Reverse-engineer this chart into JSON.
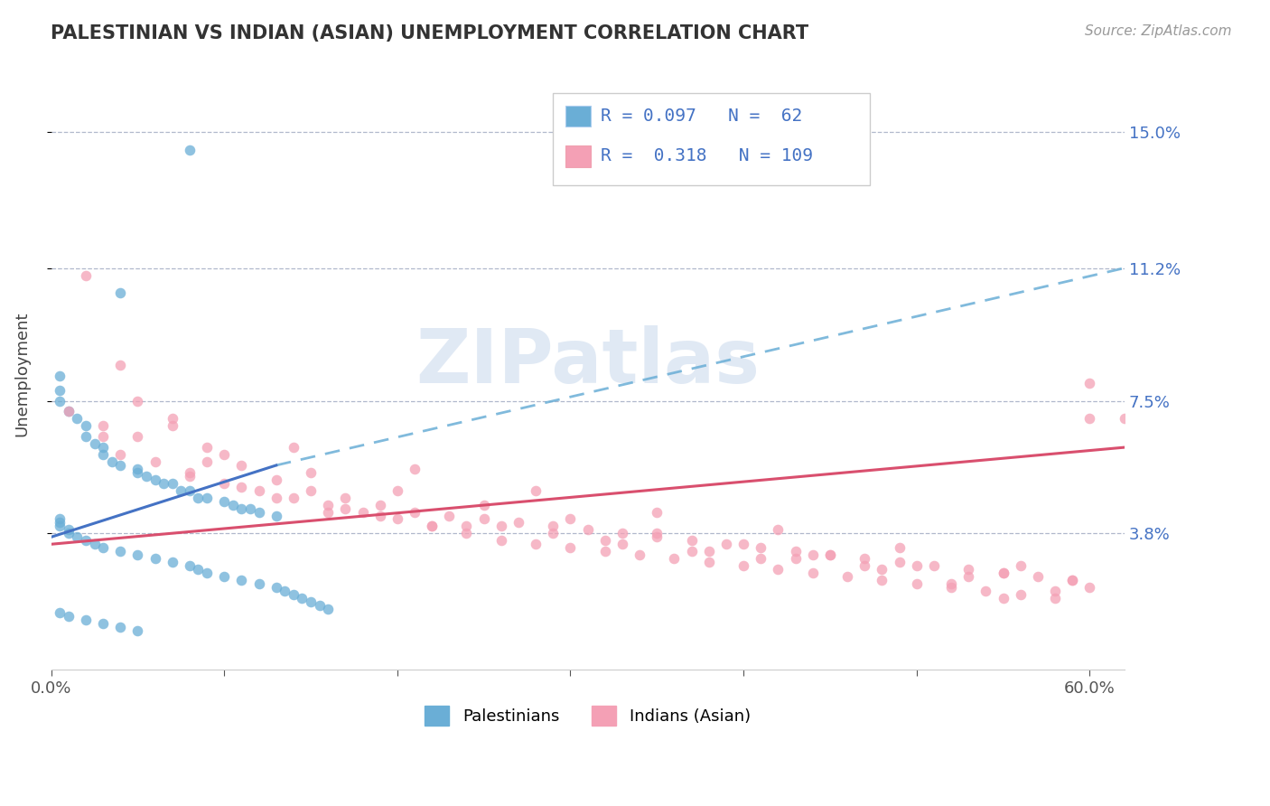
{
  "title": "PALESTINIAN VS INDIAN (ASIAN) UNEMPLOYMENT CORRELATION CHART",
  "source": "Source: ZipAtlas.com",
  "ylabel": "Unemployment",
  "xlim": [
    0.0,
    0.62
  ],
  "ylim": [
    0.0,
    0.165
  ],
  "yticks": [
    0.038,
    0.075,
    0.112,
    0.15
  ],
  "ytick_labels": [
    "3.8%",
    "7.5%",
    "11.2%",
    "15.0%"
  ],
  "blue_color": "#6aaed6",
  "pink_color": "#f4a0b5",
  "trendline_blue_solid_color": "#4472c4",
  "trendline_blue_dash_color": "#6aaed6",
  "trendline_pink_color": "#d94f6e",
  "legend_R1": "0.097",
  "legend_N1": "62",
  "legend_R2": "0.318",
  "legend_N2": "109",
  "label1": "Palestinians",
  "label2": "Indians (Asian)",
  "watermark": "ZIPatlas",
  "blue_scatter_x": [
    0.08,
    0.04,
    0.005,
    0.005,
    0.005,
    0.01,
    0.015,
    0.02,
    0.02,
    0.025,
    0.03,
    0.03,
    0.035,
    0.04,
    0.05,
    0.05,
    0.055,
    0.06,
    0.065,
    0.07,
    0.075,
    0.08,
    0.085,
    0.09,
    0.1,
    0.105,
    0.11,
    0.115,
    0.12,
    0.13,
    0.005,
    0.005,
    0.005,
    0.01,
    0.01,
    0.015,
    0.02,
    0.025,
    0.03,
    0.04,
    0.05,
    0.06,
    0.07,
    0.08,
    0.085,
    0.09,
    0.1,
    0.11,
    0.12,
    0.13,
    0.135,
    0.14,
    0.145,
    0.15,
    0.155,
    0.16,
    0.005,
    0.01,
    0.02,
    0.03,
    0.04,
    0.05
  ],
  "blue_scatter_y": [
    0.145,
    0.105,
    0.082,
    0.078,
    0.075,
    0.072,
    0.07,
    0.068,
    0.065,
    0.063,
    0.062,
    0.06,
    0.058,
    0.057,
    0.056,
    0.055,
    0.054,
    0.053,
    0.052,
    0.052,
    0.05,
    0.05,
    0.048,
    0.048,
    0.047,
    0.046,
    0.045,
    0.045,
    0.044,
    0.043,
    0.042,
    0.041,
    0.04,
    0.039,
    0.038,
    0.037,
    0.036,
    0.035,
    0.034,
    0.033,
    0.032,
    0.031,
    0.03,
    0.029,
    0.028,
    0.027,
    0.026,
    0.025,
    0.024,
    0.023,
    0.022,
    0.021,
    0.02,
    0.019,
    0.018,
    0.017,
    0.016,
    0.015,
    0.014,
    0.013,
    0.012,
    0.011
  ],
  "pink_scatter_x": [
    0.02,
    0.04,
    0.05,
    0.07,
    0.09,
    0.11,
    0.13,
    0.15,
    0.17,
    0.19,
    0.21,
    0.23,
    0.25,
    0.27,
    0.29,
    0.31,
    0.33,
    0.35,
    0.37,
    0.39,
    0.41,
    0.43,
    0.45,
    0.47,
    0.49,
    0.51,
    0.53,
    0.55,
    0.57,
    0.59,
    0.01,
    0.03,
    0.06,
    0.08,
    0.1,
    0.12,
    0.14,
    0.16,
    0.18,
    0.2,
    0.22,
    0.24,
    0.26,
    0.28,
    0.3,
    0.32,
    0.34,
    0.36,
    0.38,
    0.4,
    0.42,
    0.44,
    0.46,
    0.48,
    0.5,
    0.52,
    0.54,
    0.56,
    0.58,
    0.6,
    0.05,
    0.1,
    0.15,
    0.2,
    0.25,
    0.3,
    0.35,
    0.4,
    0.45,
    0.5,
    0.55,
    0.6,
    0.07,
    0.14,
    0.21,
    0.28,
    0.35,
    0.42,
    0.49,
    0.56,
    0.03,
    0.09,
    0.24,
    0.38,
    0.47,
    0.55,
    0.17,
    0.32,
    0.43,
    0.58,
    0.11,
    0.26,
    0.44,
    0.59,
    0.08,
    0.19,
    0.33,
    0.48,
    0.62,
    0.04,
    0.13,
    0.29,
    0.52,
    0.16,
    0.41,
    0.6,
    0.22,
    0.37,
    0.53
  ],
  "pink_scatter_y": [
    0.11,
    0.085,
    0.075,
    0.068,
    0.062,
    0.057,
    0.053,
    0.05,
    0.048,
    0.046,
    0.044,
    0.043,
    0.042,
    0.041,
    0.04,
    0.039,
    0.038,
    0.037,
    0.036,
    0.035,
    0.034,
    0.033,
    0.032,
    0.031,
    0.03,
    0.029,
    0.028,
    0.027,
    0.026,
    0.025,
    0.072,
    0.065,
    0.058,
    0.055,
    0.052,
    0.05,
    0.048,
    0.046,
    0.044,
    0.042,
    0.04,
    0.038,
    0.036,
    0.035,
    0.034,
    0.033,
    0.032,
    0.031,
    0.03,
    0.029,
    0.028,
    0.027,
    0.026,
    0.025,
    0.024,
    0.023,
    0.022,
    0.021,
    0.02,
    0.07,
    0.065,
    0.06,
    0.055,
    0.05,
    0.046,
    0.042,
    0.038,
    0.035,
    0.032,
    0.029,
    0.027,
    0.08,
    0.07,
    0.062,
    0.056,
    0.05,
    0.044,
    0.039,
    0.034,
    0.029,
    0.068,
    0.058,
    0.04,
    0.033,
    0.029,
    0.02,
    0.045,
    0.036,
    0.031,
    0.022,
    0.051,
    0.04,
    0.032,
    0.025,
    0.054,
    0.043,
    0.035,
    0.028,
    0.07,
    0.06,
    0.048,
    0.038,
    0.024,
    0.044,
    0.031,
    0.023,
    0.04,
    0.033,
    0.026
  ]
}
